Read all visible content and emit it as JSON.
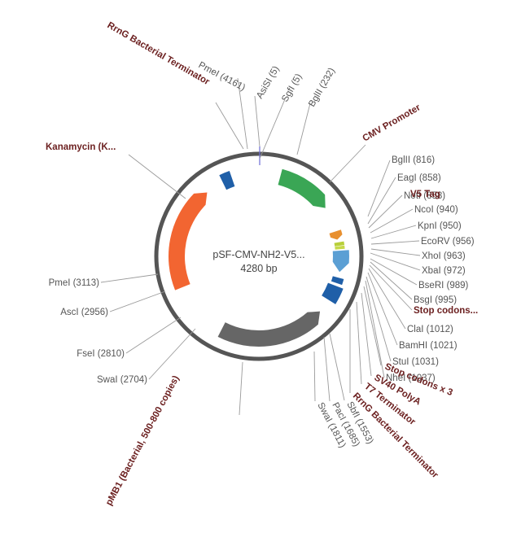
{
  "plasmid": {
    "name": "pSF-CMV-NH2-V5...",
    "size_label": "4280 bp"
  },
  "sites": [
    {
      "label": "PmeI (4161)"
    },
    {
      "label": "AsiSI (5)"
    },
    {
      "label": "SgfI (5)"
    },
    {
      "label": "BglII (232)"
    },
    {
      "label": "BglII (816)"
    },
    {
      "label": "EagI (858)"
    },
    {
      "label": "NotI (858)"
    },
    {
      "label": "NcoI (940)"
    },
    {
      "label": "KpnI (950)"
    },
    {
      "label": "EcoRV (956)"
    },
    {
      "label": "XhoI (963)"
    },
    {
      "label": "XbaI (972)"
    },
    {
      "label": "BseRI (989)"
    },
    {
      "label": "BsgI (995)"
    },
    {
      "label": "ClaI (1012)"
    },
    {
      "label": "BamHI (1021)"
    },
    {
      "label": "StuI (1031)"
    },
    {
      "label": "NheI (1037)"
    },
    {
      "label": "SbfI (1553)"
    },
    {
      "label": "PacI (1685)"
    },
    {
      "label": "SwaI (1811)"
    },
    {
      "label": "SwaI (2704)"
    },
    {
      "label": "FseI (2810)"
    },
    {
      "label": "AscI (2956)"
    },
    {
      "label": "PmeI (3113)"
    }
  ],
  "features": [
    {
      "label": "RrnG Bacterial Terminator",
      "color": "#1f5fa8"
    },
    {
      "label": "CMV Promoter",
      "color": "#3aa655"
    },
    {
      "label": "V5 Tag",
      "color": "#e8902f"
    },
    {
      "label": "Stop codons...",
      "color": "#b8cf3a"
    },
    {
      "label": "Stop codons x 3",
      "color": "#c6d94a"
    },
    {
      "label": "SV40 PolyA",
      "color": "#5b9fd4"
    },
    {
      "label": "T7 Terminator",
      "color": "#1f5fa8"
    },
    {
      "label": "RrnG Bacterial Terminator",
      "color": "#1f5fa8"
    },
    {
      "label": "pMB1 (Bacterial, 500-800 copies)",
      "color": "#666666"
    },
    {
      "label": "Kanamycin (K...",
      "color": "#f26531"
    }
  ]
}
